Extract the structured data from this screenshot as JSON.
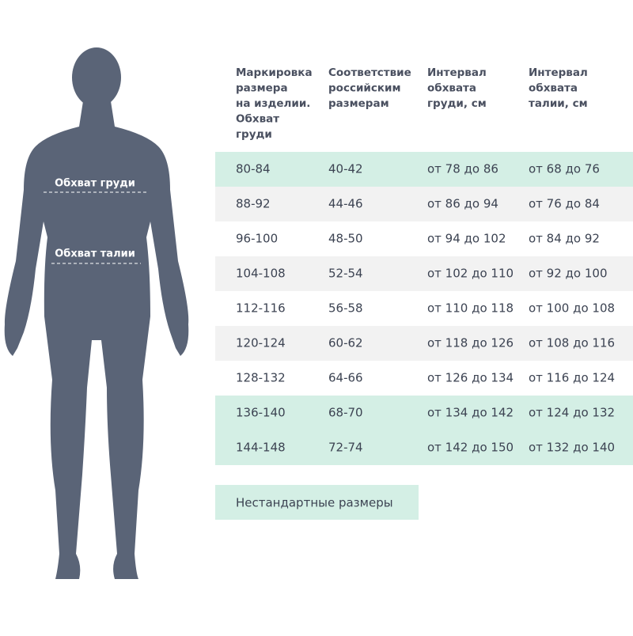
{
  "figure": {
    "labels": [
      "Обхват груди",
      "Обхват талии"
    ]
  },
  "table": {
    "header": [
      [
        "Маркировка",
        "размера",
        "на изделии.",
        "Обхват",
        "груди"
      ],
      [
        "Соответствие",
        "российским",
        "размерам"
      ],
      [
        "Интервал",
        "обхвата",
        "груди, см"
      ],
      [
        "Интервал",
        "обхвата",
        "талии, см"
      ]
    ],
    "rows": [
      [
        "80-84",
        "40-42",
        "от 78 до 86",
        "от 68 до 76"
      ],
      [
        "88-92",
        "44-46",
        "от 86 до 94",
        "от 76 до 84"
      ],
      [
        "96-100",
        "48-50",
        "от 94 до 102",
        "от 84 до 92"
      ],
      [
        "104-108",
        "52-54",
        "от 102 до 110",
        "от 92 до 100"
      ],
      [
        "112-116",
        "56-58",
        "от 110 до 118",
        "от 100 до 108"
      ],
      [
        "120-124",
        "60-62",
        "от 118 до 126",
        "от 108 до 116"
      ],
      [
        "128-132",
        "64-66",
        "от 126 до 134",
        "от 116 до 124"
      ],
      [
        "136-140",
        "68-70",
        "от 134 до 142",
        "от 124 до 132"
      ],
      [
        "144-148",
        "72-74",
        "от 142 до 150",
        "от 132 до 140"
      ]
    ],
    "row_colors": [
      "#d4efe5",
      "#f2f2f2",
      "#ffffff",
      "#f2f2f2",
      "#ffffff",
      "#f2f2f2",
      "#ffffff",
      "#d4efe5",
      "#d4efe5"
    ]
  },
  "legend": {
    "label": "Нестандартные размеры",
    "color": "#d4efe5"
  }
}
